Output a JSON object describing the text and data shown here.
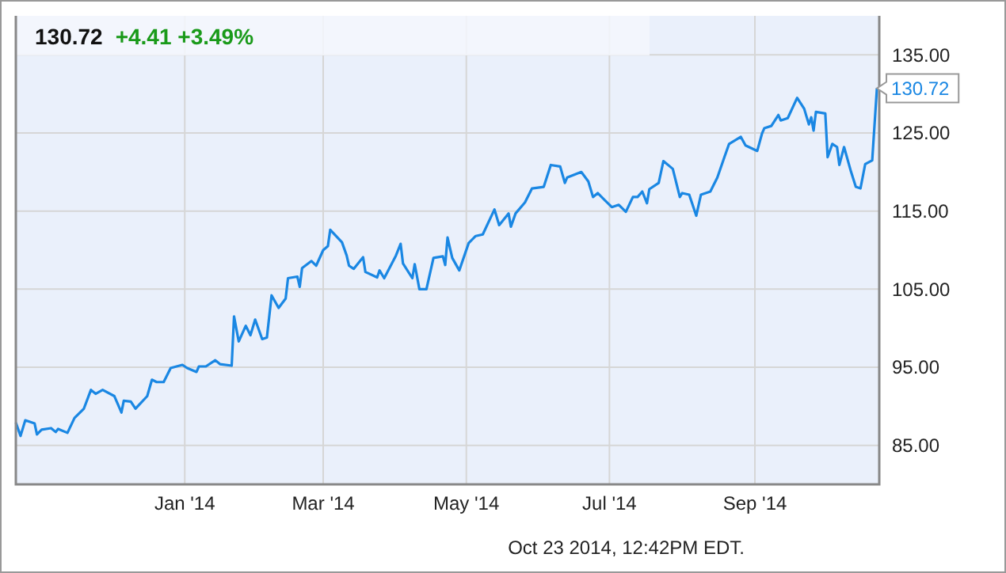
{
  "chart_data": {
    "type": "line",
    "title": "130.72",
    "subtitle": "+4.41 +3.49%",
    "x": [
      "2013-10-21",
      "2013-10-23",
      "2013-10-25",
      "2013-10-29",
      "2013-10-30",
      "2013-11-01",
      "2013-11-05",
      "2013-11-07",
      "2013-11-08",
      "2013-11-12",
      "2013-11-15",
      "2013-11-19",
      "2013-11-22",
      "2013-11-24",
      "2013-11-27",
      "2013-12-02",
      "2013-12-05",
      "2013-12-06",
      "2013-12-09",
      "2013-12-11",
      "2013-12-16",
      "2013-12-18",
      "2013-12-20",
      "2013-12-23",
      "2013-12-26",
      "2013-12-31",
      "2014-01-02",
      "2014-01-06",
      "2014-01-07",
      "2014-01-10",
      "2014-01-14",
      "2014-01-16",
      "2014-01-21",
      "2014-01-22",
      "2014-01-24",
      "2014-01-27",
      "2014-01-29",
      "2014-01-31",
      "2014-02-03",
      "2014-02-05",
      "2014-02-07",
      "2014-02-10",
      "2014-02-13",
      "2014-02-14",
      "2014-02-18",
      "2014-02-19",
      "2014-02-20",
      "2014-02-24",
      "2014-02-26",
      "2014-03-01",
      "2014-03-03",
      "2014-03-04",
      "2014-03-09",
      "2014-03-11",
      "2014-03-12",
      "2014-03-14",
      "2014-03-18",
      "2014-03-19",
      "2014-03-24",
      "2014-03-25",
      "2014-03-27",
      "2014-04-01",
      "2014-04-03",
      "2014-04-04",
      "2014-04-08",
      "2014-04-09",
      "2014-04-11",
      "2014-04-14",
      "2014-04-17",
      "2014-04-21",
      "2014-04-22",
      "2014-04-23",
      "2014-04-25",
      "2014-04-28",
      "2014-05-02",
      "2014-05-05",
      "2014-05-08",
      "2014-05-13",
      "2014-05-15",
      "2014-05-19",
      "2014-05-20",
      "2014-05-22",
      "2014-05-26",
      "2014-05-29",
      "2014-06-03",
      "2014-06-06",
      "2014-06-10",
      "2014-06-12",
      "2014-06-13",
      "2014-06-19",
      "2014-06-22",
      "2014-06-24",
      "2014-06-26",
      "2014-07-02",
      "2014-07-05",
      "2014-07-08",
      "2014-07-11",
      "2014-07-13",
      "2014-07-15",
      "2014-07-17",
      "2014-07-18",
      "2014-07-22",
      "2014-07-24",
      "2014-07-28",
      "2014-07-31",
      "2014-08-01",
      "2014-08-04",
      "2014-08-07",
      "2014-08-09",
      "2014-08-13",
      "2014-08-16",
      "2014-08-19",
      "2014-08-21",
      "2014-08-26",
      "2014-08-28",
      "2014-09-02",
      "2014-09-04",
      "2014-09-05",
      "2014-09-08",
      "2014-09-11",
      "2014-09-12",
      "2014-09-15",
      "2014-09-19",
      "2014-09-22",
      "2014-09-24",
      "2014-09-25",
      "2014-09-26",
      "2014-09-27",
      "2014-10-01",
      "2014-10-02",
      "2014-10-04",
      "2014-10-06",
      "2014-10-07",
      "2014-10-09",
      "2014-10-12",
      "2014-10-14",
      "2014-10-16",
      "2014-10-18",
      "2014-10-21",
      "2014-10-23"
    ],
    "series": [
      {
        "color": "#1a87e3",
        "values": [
          87.9,
          86.2,
          88.2,
          87.8,
          86.4,
          87.0,
          87.2,
          86.7,
          87.1,
          86.6,
          88.5,
          89.7,
          92.1,
          91.6,
          92.1,
          91.3,
          89.2,
          90.7,
          90.6,
          89.7,
          91.3,
          93.4,
          93.1,
          93.1,
          94.9,
          95.3,
          94.9,
          94.4,
          95.1,
          95.1,
          95.9,
          95.4,
          95.2,
          101.5,
          98.3,
          100.3,
          99.1,
          101.1,
          98.6,
          98.8,
          104.2,
          102.6,
          103.8,
          106.4,
          106.6,
          105.3,
          107.7,
          108.6,
          108.0,
          110.0,
          110.5,
          112.6,
          111.0,
          109.3,
          108.0,
          107.6,
          109.1,
          107.2,
          106.5,
          107.4,
          106.4,
          109.3,
          110.8,
          108.3,
          106.4,
          108.2,
          105.0,
          105.0,
          109.0,
          109.2,
          108.1,
          111.6,
          109.0,
          107.4,
          110.9,
          111.8,
          112.0,
          115.2,
          113.2,
          114.7,
          113.0,
          114.7,
          116.1,
          117.9,
          118.1,
          120.9,
          120.7,
          118.6,
          119.3,
          120.0,
          118.8,
          116.8,
          117.3,
          115.5,
          115.8,
          114.9,
          116.8,
          116.8,
          117.5,
          116.0,
          117.8,
          118.6,
          121.4,
          120.4,
          116.8,
          117.3,
          117.1,
          114.4,
          117.1,
          117.5,
          119.3,
          121.9,
          123.6,
          124.5,
          123.4,
          122.7,
          124.9,
          125.6,
          125.9,
          127.3,
          126.6,
          126.9,
          129.5,
          128.1,
          126.1,
          127.0,
          125.3,
          127.7,
          127.5,
          121.9,
          123.6,
          123.2,
          120.9,
          123.2,
          120.0,
          118.1,
          117.9,
          121.0,
          121.5,
          130.72
        ]
      }
    ],
    "xlim": [
      "2013-10-21",
      "2014-10-24"
    ],
    "xticks": [
      {
        "value": "2014-01-01",
        "label": "Jan '14"
      },
      {
        "value": "2014-03-01",
        "label": "Mar '14"
      },
      {
        "value": "2014-05-01",
        "label": "May '14"
      },
      {
        "value": "2014-07-01",
        "label": "Jul '14"
      },
      {
        "value": "2014-09-01",
        "label": "Sep '14"
      }
    ],
    "ylim": [
      80,
      140
    ],
    "yticks": [
      {
        "value": 85,
        "label": "85.00"
      },
      {
        "value": 95,
        "label": "95.00"
      },
      {
        "value": 105,
        "label": "105.00"
      },
      {
        "value": 115,
        "label": "115.00"
      },
      {
        "value": 125,
        "label": "125.00"
      },
      {
        "value": 135,
        "label": "135.00"
      }
    ],
    "grid": true,
    "marker": "none",
    "line_style": "solid",
    "annotations": [
      {
        "text": "130.72",
        "x": "2014-10-23",
        "y": 130.72
      },
      "Oct 23 2014, 12:42PM EDT."
    ]
  }
}
